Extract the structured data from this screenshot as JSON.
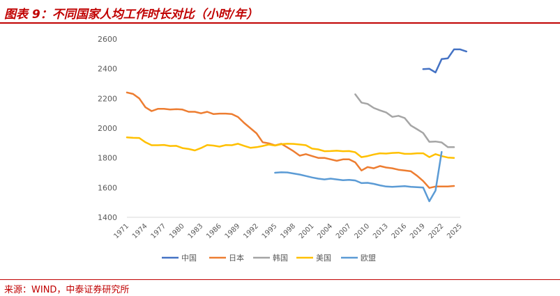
{
  "figure": {
    "title": "图表 9：不同国家人均工作时长对比（小时/年）",
    "source": "来源：WIND，中泰证券研究所"
  },
  "chart_data": {
    "type": "line",
    "title": "",
    "xlabel": "",
    "ylabel": "",
    "xlim": [
      1971,
      2025
    ],
    "ylim": [
      1400,
      2600
    ],
    "y_ticks": [
      1400,
      1600,
      1800,
      2000,
      2200,
      2400,
      2600
    ],
    "x_ticks": [
      1971,
      1974,
      1977,
      1980,
      1983,
      1986,
      1989,
      1992,
      1995,
      1998,
      2001,
      2004,
      2007,
      2010,
      2013,
      2016,
      2019,
      2022,
      2025
    ],
    "grid": false,
    "legend": "bottom",
    "series": [
      {
        "name": "中国",
        "color": "#4472c4",
        "x": [
          2019,
          2020,
          2021,
          2022,
          2023,
          2024,
          2025,
          2026
        ],
        "y": [
          2397,
          2400,
          2375,
          2465,
          2470,
          2530,
          2530,
          2516
        ]
      },
      {
        "name": "日本",
        "color": "#ed7d31",
        "x": [
          1971,
          1972,
          1973,
          1974,
          1975,
          1976,
          1977,
          1978,
          1979,
          1980,
          1981,
          1982,
          1983,
          1984,
          1985,
          1986,
          1987,
          1988,
          1989,
          1990,
          1991,
          1992,
          1993,
          1994,
          1995,
          1996,
          1997,
          1998,
          1999,
          2000,
          2001,
          2002,
          2003,
          2004,
          2005,
          2006,
          2007,
          2008,
          2009,
          2010,
          2011,
          2012,
          2013,
          2014,
          2015,
          2016,
          2017,
          2018,
          2019,
          2020,
          2021,
          2022,
          2023,
          2024
        ],
        "y": [
          2240,
          2230,
          2200,
          2140,
          2115,
          2130,
          2130,
          2125,
          2128,
          2125,
          2110,
          2110,
          2100,
          2110,
          2095,
          2098,
          2098,
          2095,
          2075,
          2035,
          2000,
          1965,
          1905,
          1898,
          1884,
          1895,
          1870,
          1845,
          1815,
          1825,
          1812,
          1800,
          1800,
          1790,
          1780,
          1790,
          1790,
          1770,
          1715,
          1738,
          1730,
          1745,
          1735,
          1730,
          1720,
          1715,
          1710,
          1680,
          1644,
          1598,
          1607,
          1607,
          1607,
          1611
        ]
      },
      {
        "name": "韩国",
        "color": "#a5a5a5",
        "x": [
          2008,
          2009,
          2010,
          2011,
          2012,
          2013,
          2014,
          2015,
          2016,
          2017,
          2018,
          2019,
          2020,
          2021,
          2022,
          2023,
          2024
        ],
        "y": [
          2228,
          2172,
          2163,
          2136,
          2120,
          2106,
          2076,
          2083,
          2068,
          2018,
          1993,
          1967,
          1908,
          1910,
          1904,
          1872,
          1872
        ]
      },
      {
        "name": "美国",
        "color": "#ffc000",
        "x": [
          1971,
          1972,
          1973,
          1974,
          1975,
          1976,
          1977,
          1978,
          1979,
          1980,
          1981,
          1982,
          1983,
          1984,
          1985,
          1986,
          1987,
          1988,
          1989,
          1990,
          1991,
          1992,
          1993,
          1994,
          1995,
          1996,
          1997,
          1998,
          1999,
          2000,
          2001,
          2002,
          2003,
          2004,
          2005,
          2006,
          2007,
          2008,
          2009,
          2010,
          2011,
          2012,
          2013,
          2014,
          2015,
          2016,
          2017,
          2018,
          2019,
          2020,
          2021,
          2022,
          2023,
          2024
        ],
        "y": [
          1938,
          1935,
          1934,
          1905,
          1885,
          1885,
          1887,
          1880,
          1881,
          1866,
          1860,
          1850,
          1866,
          1886,
          1883,
          1876,
          1886,
          1885,
          1895,
          1881,
          1868,
          1872,
          1880,
          1890,
          1883,
          1892,
          1895,
          1894,
          1890,
          1885,
          1862,
          1857,
          1845,
          1846,
          1848,
          1845,
          1846,
          1838,
          1805,
          1812,
          1823,
          1831,
          1829,
          1833,
          1835,
          1827,
          1827,
          1831,
          1831,
          1805,
          1825,
          1812,
          1802,
          1800
        ]
      },
      {
        "name": "欧盟",
        "color": "#5b9bd5",
        "x": [
          1995,
          1996,
          1997,
          1998,
          1999,
          2000,
          2001,
          2002,
          2003,
          2004,
          2005,
          2006,
          2007,
          2008,
          2009,
          2010,
          2011,
          2012,
          2013,
          2014,
          2015,
          2016,
          2017,
          2018,
          2019,
          2020,
          2021,
          2022
        ],
        "y": [
          1700,
          1703,
          1702,
          1695,
          1688,
          1678,
          1668,
          1660,
          1655,
          1660,
          1655,
          1650,
          1652,
          1648,
          1630,
          1632,
          1625,
          1615,
          1607,
          1605,
          1607,
          1610,
          1605,
          1603,
          1600,
          1508,
          1580,
          1840
        ]
      }
    ]
  }
}
